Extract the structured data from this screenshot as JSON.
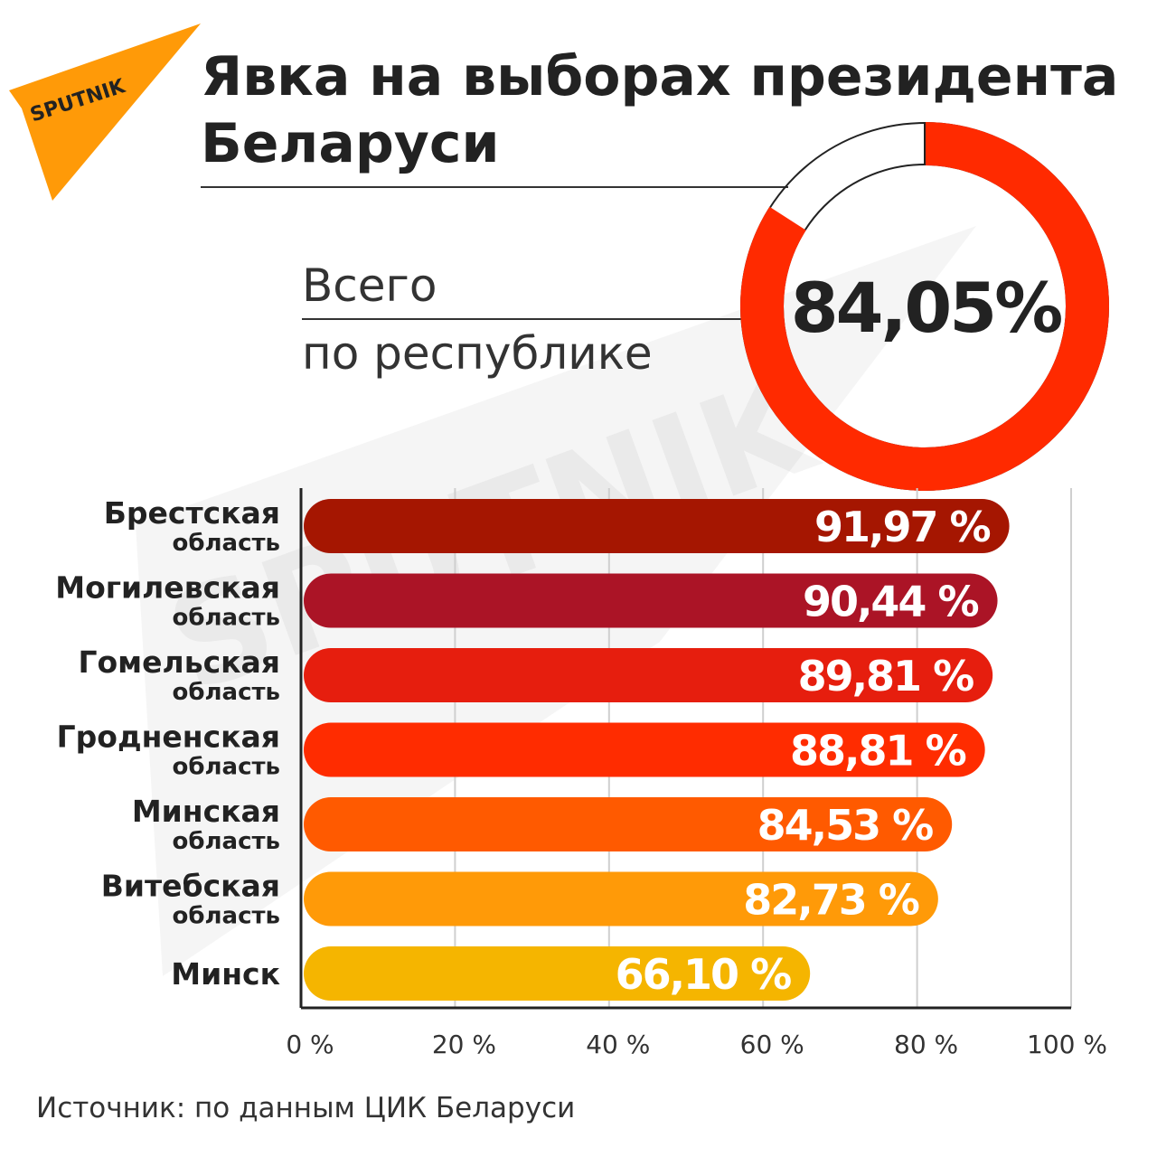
{
  "logo": {
    "text": "SPUTNIK",
    "color": "#ff9a08"
  },
  "watermark": {
    "text": "SPUTNIK"
  },
  "title_lines": [
    "Явка на выборах президента",
    "Беларуси"
  ],
  "total": {
    "label_line1": "Всего",
    "label_line2": "по республике",
    "value_text": "84,05%",
    "value": 84.05,
    "ring_color": "#ff2a00"
  },
  "chart_data": {
    "type": "bar",
    "orientation": "horizontal",
    "categories": [
      {
        "line1": "Брестская",
        "line2": "область"
      },
      {
        "line1": "Могилевская",
        "line2": "область"
      },
      {
        "line1": "Гомельская",
        "line2": "область"
      },
      {
        "line1": "Гродненская",
        "line2": "область"
      },
      {
        "line1": "Минская",
        "line2": "область"
      },
      {
        "line1": "Витебская",
        "line2": "область"
      },
      {
        "line1": "Минск",
        "line2": ""
      }
    ],
    "values": [
      91.97,
      90.44,
      89.81,
      88.81,
      84.53,
      82.73,
      66.1
    ],
    "value_labels": [
      "91,97 %",
      "90,44 %",
      "89,81 %",
      "88,81 %",
      "84,53 %",
      "82,73 %",
      "66,10 %"
    ],
    "colors": [
      "#a51601",
      "#ab1426",
      "#e61e0e",
      "#ff2c00",
      "#ff5a00",
      "#ff9a08",
      "#f5b500"
    ],
    "xlim": [
      0,
      100
    ],
    "xticks": [
      0,
      20,
      40,
      60,
      80,
      100
    ],
    "xtick_labels": [
      "0 %",
      "20 %",
      "40 %",
      "60 %",
      "80 %",
      "100 %"
    ],
    "grid": true
  },
  "source": "Источник: по данным ЦИК Беларуси"
}
